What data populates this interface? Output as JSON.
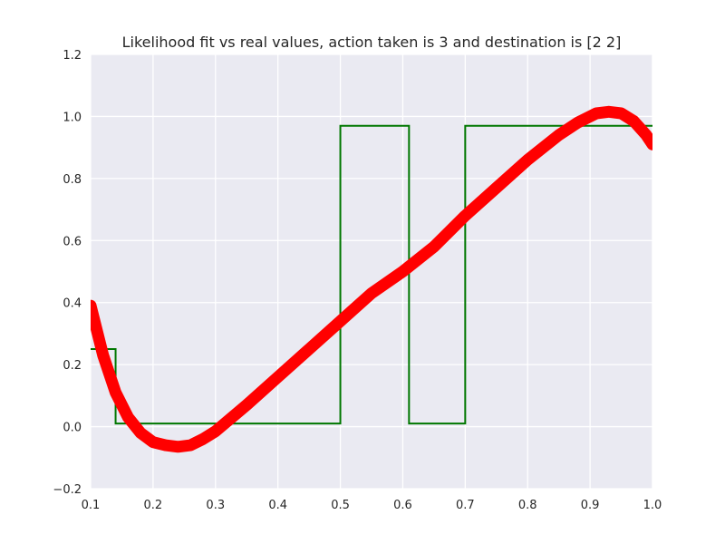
{
  "chart_data": {
    "type": "line",
    "title": "Likelihood fit vs real values, action taken is 3 and destination is [2 2]",
    "xlabel": "",
    "ylabel": "",
    "xlim": [
      0.1,
      1.0
    ],
    "ylim": [
      -0.2,
      1.2
    ],
    "xticks": [
      "0.1",
      "0.2",
      "0.3",
      "0.4",
      "0.5",
      "0.6",
      "0.7",
      "0.8",
      "0.9",
      "1.0"
    ],
    "yticks": [
      "−0.2",
      "0.0",
      "0.2",
      "0.4",
      "0.6",
      "0.8",
      "1.0",
      "1.2"
    ],
    "grid": true,
    "background": "#eaeaf2",
    "series": [
      {
        "style": "step",
        "color": "#007700",
        "x": [
          0.1,
          0.14,
          0.14,
          0.5,
          0.5,
          0.61,
          0.61,
          0.7,
          0.7,
          1.0
        ],
        "y": [
          0.25,
          0.25,
          0.01,
          0.01,
          0.97,
          0.97,
          0.01,
          0.01,
          0.97,
          0.97
        ]
      },
      {
        "style": "thick-markers",
        "color": "#ff0000",
        "x": [
          0.1,
          0.12,
          0.14,
          0.16,
          0.18,
          0.2,
          0.22,
          0.24,
          0.26,
          0.28,
          0.3,
          0.35,
          0.4,
          0.45,
          0.5,
          0.55,
          0.6,
          0.65,
          0.7,
          0.75,
          0.8,
          0.85,
          0.88,
          0.91,
          0.93,
          0.95,
          0.97,
          0.99,
          1.0
        ],
        "y": [
          0.39,
          0.23,
          0.11,
          0.03,
          -0.02,
          -0.05,
          -0.06,
          -0.065,
          -0.06,
          -0.04,
          -0.015,
          0.07,
          0.16,
          0.25,
          0.34,
          0.43,
          0.5,
          0.58,
          0.68,
          0.77,
          0.86,
          0.94,
          0.98,
          1.01,
          1.015,
          1.01,
          0.985,
          0.94,
          0.91
        ]
      }
    ]
  }
}
